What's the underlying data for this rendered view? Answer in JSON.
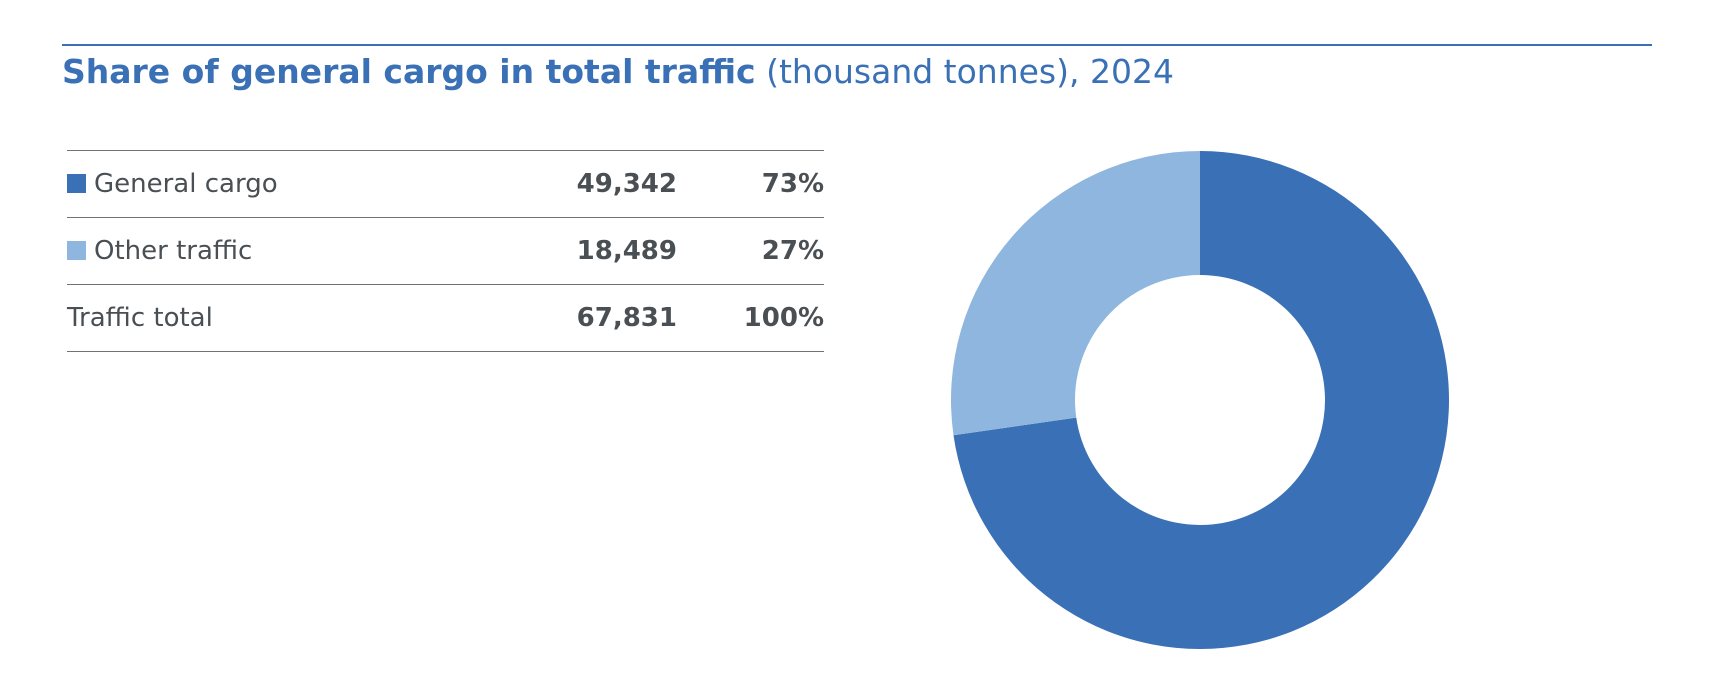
{
  "title": {
    "bold": "Share of general cargo in total traffic",
    "light": " (thousand tonnes), 2024"
  },
  "colors": {
    "accent": "#3a70b5",
    "general_cargo": "#3a70b5",
    "other_traffic": "#8fb6df",
    "text": "#4a4f54",
    "rule": "#6f7377"
  },
  "table": {
    "rows": [
      {
        "label": "General cargo",
        "value": "49,342",
        "share": "73%",
        "swatch_color": "#3a70b5"
      },
      {
        "label": "Other traffic",
        "value": "18,489",
        "share": "27%",
        "swatch_color": "#8fb6df"
      },
      {
        "label": "Traffic total",
        "value": "67,831",
        "share": "100%"
      }
    ]
  },
  "chart_data": {
    "type": "pie",
    "style": "donut",
    "title": "Share of general cargo in total traffic (thousand tonnes), 2024",
    "unit": "thousand tonnes",
    "categories": [
      "General cargo",
      "Other traffic"
    ],
    "values": [
      49342,
      18489
    ],
    "colors": [
      "#3a70b5",
      "#8fb6df"
    ],
    "total": 67831,
    "start_angle_deg": 0,
    "direction": "clockwise"
  }
}
